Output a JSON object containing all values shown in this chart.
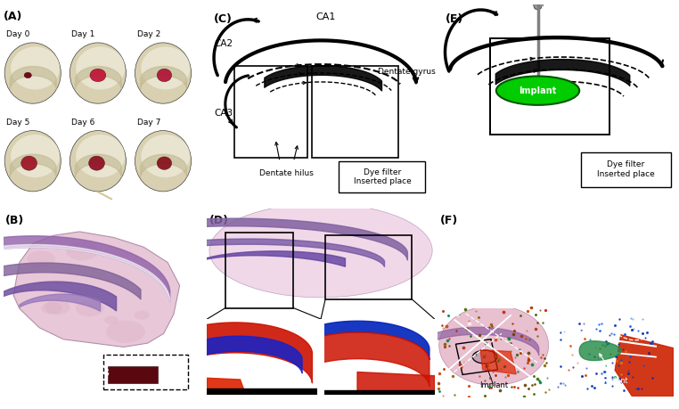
{
  "figure_width": 7.62,
  "figure_height": 4.59,
  "dpi": 100,
  "bg_color": "#ffffff",
  "panel_labels": {
    "A": "(A)",
    "B": "(B)",
    "C": "(C)",
    "D": "(D)",
    "E": "(E)",
    "F": "(F)"
  },
  "day_labels": [
    "Day 0",
    "Day 1",
    "Day 2",
    "Day 5",
    "Day 6",
    "Day 7"
  ],
  "ca1_label": "CA1",
  "ca2_label": "CA2",
  "ca3_label": "CA3",
  "dentate_gyrus_label": "Dentate gyrus",
  "dentate_hilus_label": "Dentate hilus",
  "dye_filter_label": "Dye filter\nInserted place",
  "implant_label": "Implant",
  "implant_color": "#00CC00",
  "needle_color": "#808080"
}
